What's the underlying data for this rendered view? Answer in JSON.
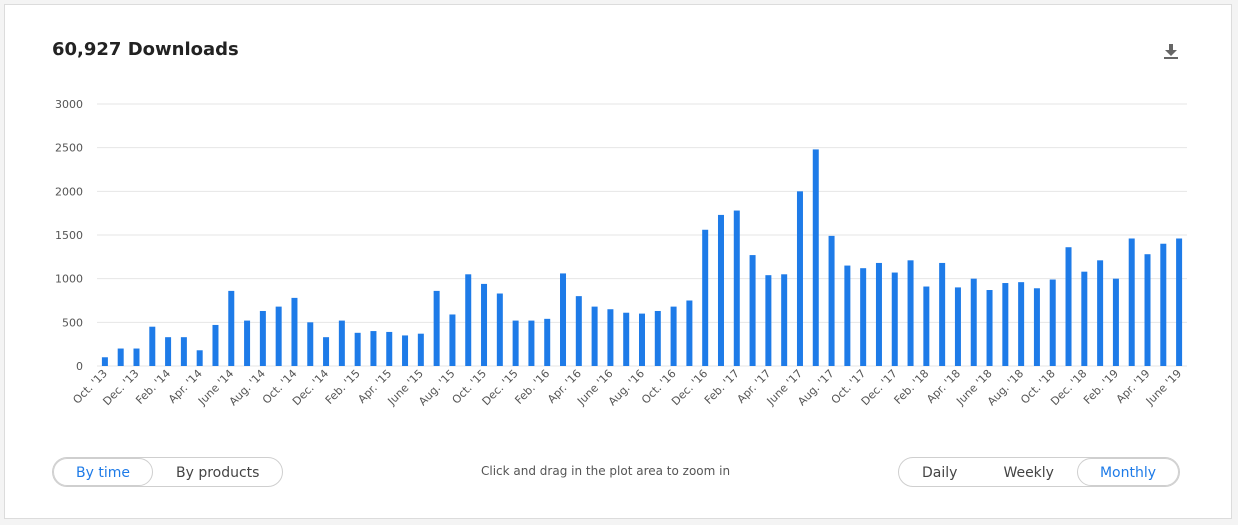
{
  "header": {
    "title": "60,927 Downloads",
    "download_icon": "download-icon"
  },
  "hint": "Click and drag in the plot area to zoom in",
  "view_toggle": {
    "options": [
      "By time",
      "By products"
    ],
    "selected": "By time"
  },
  "granularity_toggle": {
    "options": [
      "Daily",
      "Weekly",
      "Monthly"
    ],
    "selected": "Monthly"
  },
  "colors": {
    "bar": "#1e7be8",
    "accent": "#1e7be8",
    "grid": "#e6e6e6"
  },
  "chart_data": {
    "type": "bar",
    "ylim": [
      0,
      3000
    ],
    "yticks": [
      0,
      500,
      1000,
      1500,
      2000,
      2500,
      3000
    ],
    "grid": true,
    "categories": [
      "Oct. '13",
      "Nov. '13",
      "Dec. '13",
      "Jan. '14",
      "Feb. '14",
      "Mar. '14",
      "Apr. '14",
      "May '14",
      "June '14",
      "July '14",
      "Aug. '14",
      "Sep. '14",
      "Oct. '14",
      "Nov. '14",
      "Dec. '14",
      "Jan. '15",
      "Feb. '15",
      "Mar. '15",
      "Apr. '15",
      "May '15",
      "June '15",
      "July '15",
      "Aug. '15",
      "Sep. '15",
      "Oct. '15",
      "Nov. '15",
      "Dec. '15",
      "Jan. '16",
      "Feb. '16",
      "Mar. '16",
      "Apr. '16",
      "May '16",
      "June '16",
      "July '16",
      "Aug. '16",
      "Sep. '16",
      "Oct. '16",
      "Nov. '16",
      "Dec. '16",
      "Jan. '17",
      "Feb. '17",
      "Mar. '17",
      "Apr. '17",
      "May '17",
      "June '17",
      "July '17",
      "Aug. '17",
      "Sep. '17",
      "Oct. '17",
      "Nov. '17",
      "Dec. '17",
      "Jan. '18",
      "Feb. '18",
      "Mar. '18",
      "Apr. '18",
      "May '18",
      "June '18",
      "July '18",
      "Aug. '18",
      "Sep. '18",
      "Oct. '18",
      "Nov. '18",
      "Dec. '18",
      "Jan. '19",
      "Feb. '19",
      "Mar. '19",
      "Apr. '19",
      "May '19",
      "June '19"
    ],
    "xtick_labels": [
      "Oct. '13",
      "Dec. '13",
      "Feb. '14",
      "Apr. '14",
      "June '14",
      "Aug. '14",
      "Oct. '14",
      "Dec. '14",
      "Feb. '15",
      "Apr. '15",
      "June '15",
      "Aug. '15",
      "Oct. '15",
      "Dec. '15",
      "Feb. '16",
      "Apr. '16",
      "June '16",
      "Aug. '16",
      "Oct. '16",
      "Dec. '16",
      "Feb. '17",
      "Apr. '17",
      "June '17",
      "Aug. '17",
      "Oct. '17",
      "Dec. '17",
      "Feb. '18",
      "Apr. '18",
      "June '18",
      "Aug. '18",
      "Oct. '18",
      "Dec. '18",
      "Feb. '19",
      "Apr. '19",
      "June '19"
    ],
    "values": [
      100,
      200,
      200,
      450,
      330,
      330,
      180,
      470,
      860,
      520,
      630,
      680,
      780,
      500,
      330,
      520,
      380,
      400,
      390,
      350,
      370,
      860,
      590,
      1050,
      940,
      830,
      520,
      520,
      540,
      1060,
      800,
      680,
      650,
      610,
      600,
      630,
      680,
      750,
      1560,
      1730,
      1780,
      1270,
      1040,
      1050,
      2000,
      2480,
      1490,
      1150,
      1120,
      1180,
      1070,
      1210,
      910,
      1180,
      900,
      1000,
      870,
      950,
      960,
      890,
      990,
      1360,
      1080,
      1210,
      1000,
      1460,
      1280,
      1400,
      1460
    ]
  }
}
